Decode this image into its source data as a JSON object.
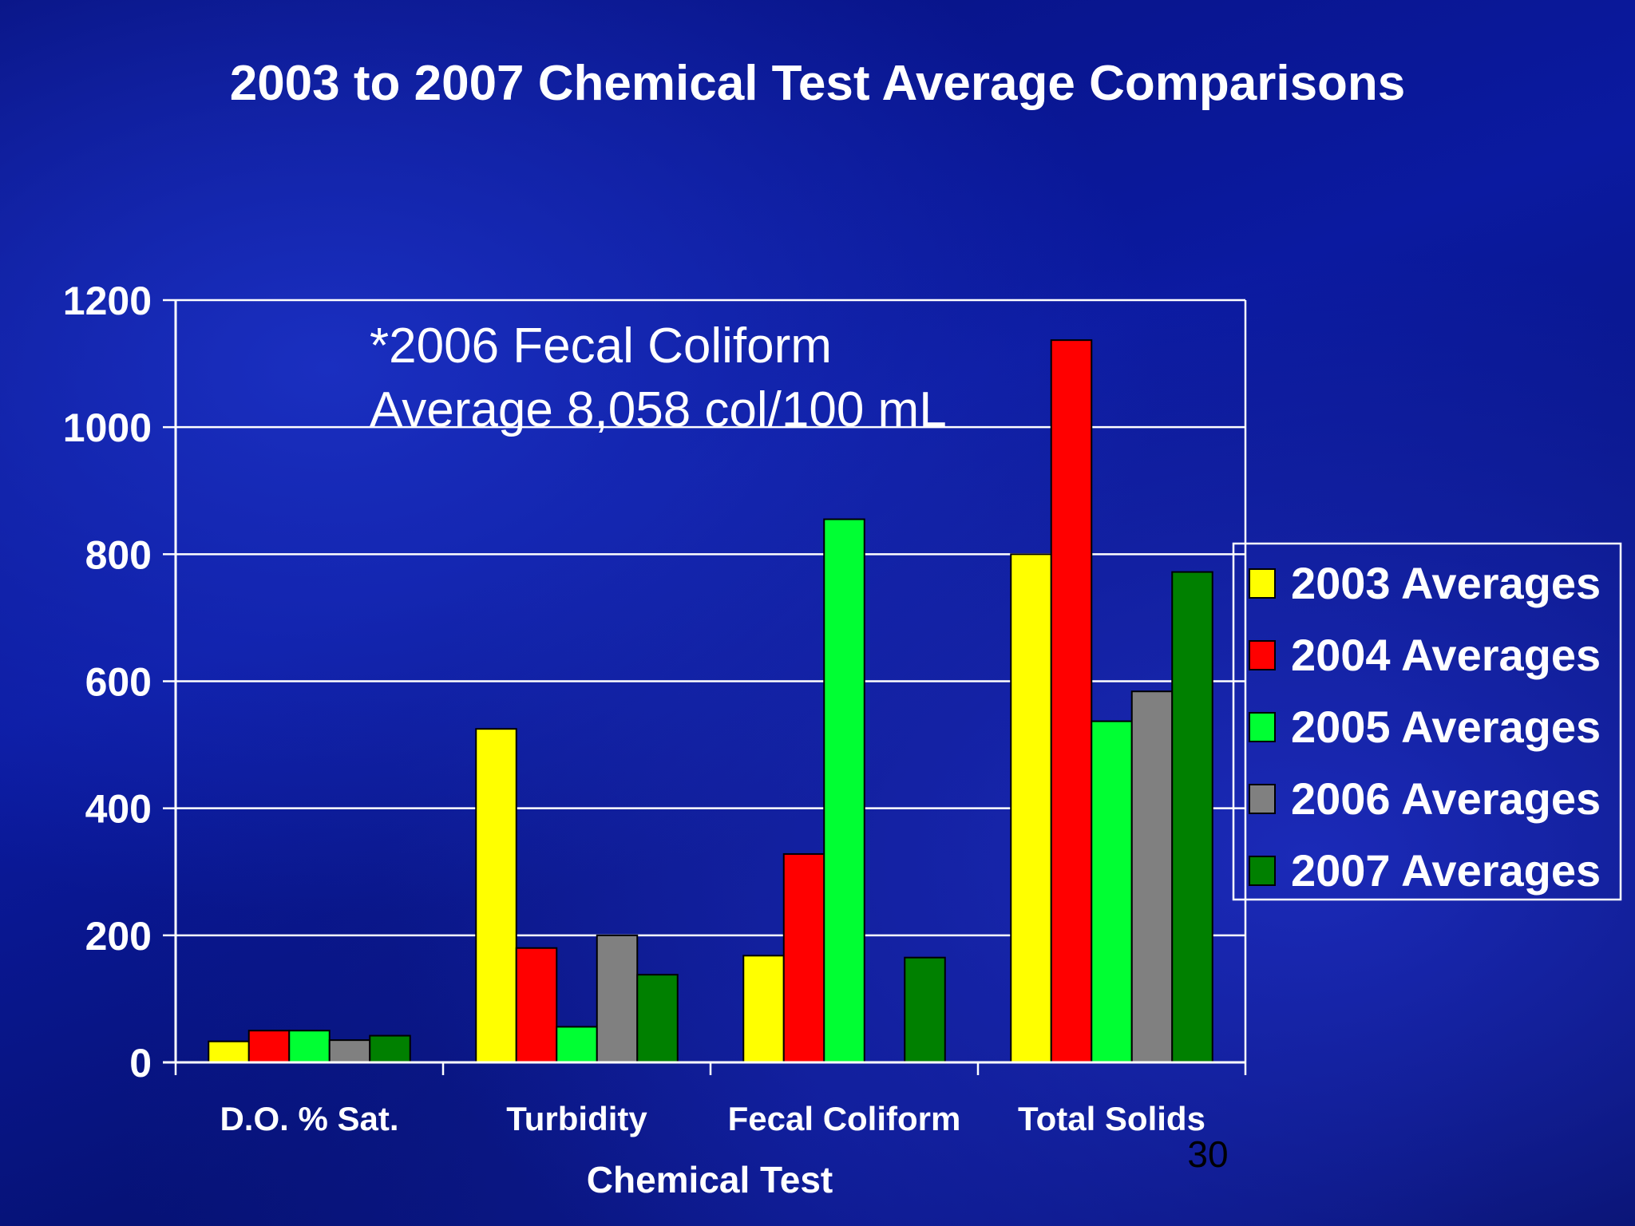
{
  "chart_data": {
    "type": "bar",
    "title": "2003 to 2007 Chemical Test Average Comparisons",
    "xlabel": "Chemical Test",
    "ylabel": "",
    "categories": [
      "D.O. % Sat.",
      "Turbidity",
      "Fecal Coliform",
      "Total Solids"
    ],
    "ylim": [
      0,
      1200
    ],
    "yticks": [
      "0",
      "200",
      "400",
      "600",
      "800",
      "1000",
      "1200"
    ],
    "grid": true,
    "legend_position": "right",
    "series": [
      {
        "name": "2003 Averages",
        "color": "#ffff00",
        "values": [
          33,
          525,
          168,
          800
        ]
      },
      {
        "name": "2004 Averages",
        "color": "#ff0000",
        "values": [
          50,
          180,
          328,
          1137
        ]
      },
      {
        "name": "2005 Averages",
        "color": "#00ff33",
        "values": [
          50,
          56,
          855,
          537
        ]
      },
      {
        "name": "2006 Averages",
        "color": "#808080",
        "values": [
          35,
          200,
          null,
          584
        ]
      },
      {
        "name": "2007 Averages",
        "color": "#008000",
        "values": [
          42,
          138,
          165,
          772
        ]
      }
    ],
    "annotation": [
      "*2006 Fecal Coliform",
      "Average 8,058 col/100 mL"
    ]
  },
  "page_number": "30"
}
